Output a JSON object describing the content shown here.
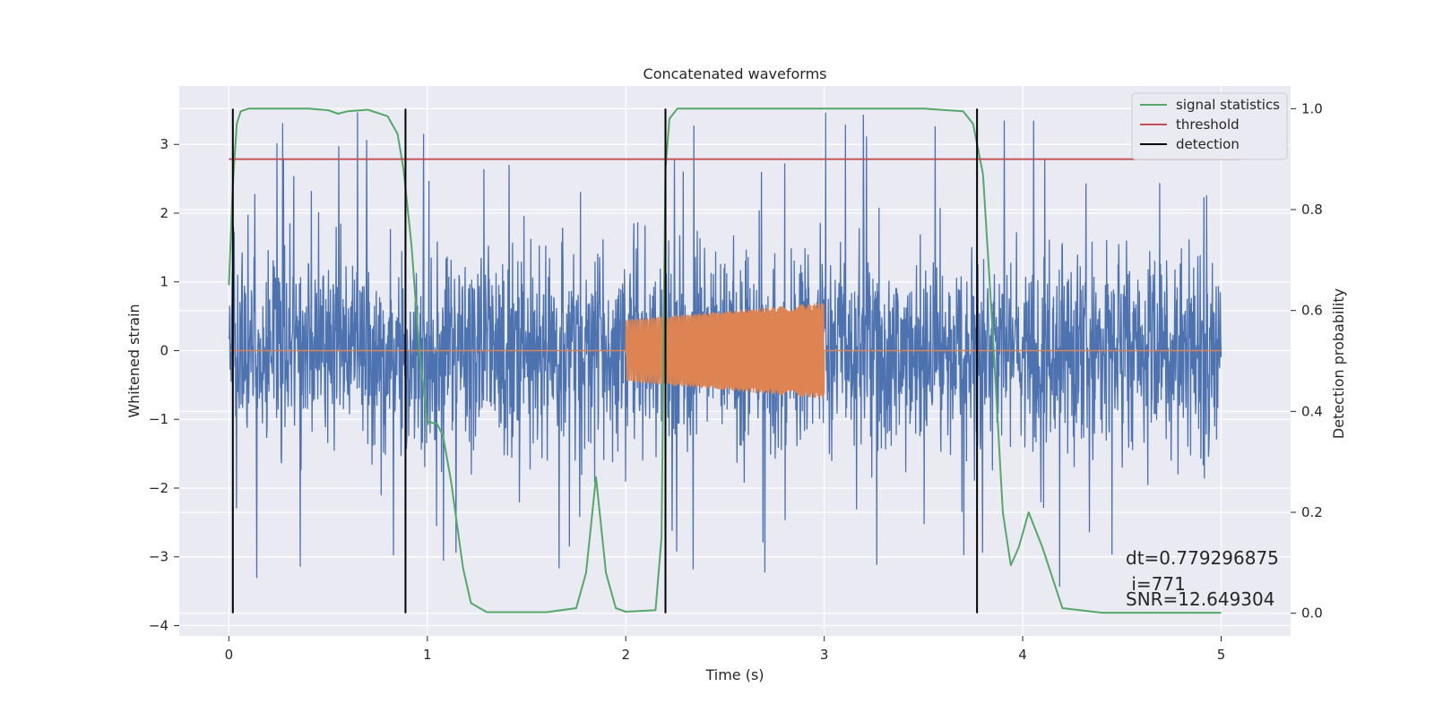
{
  "chart_data": {
    "type": "line",
    "title": "Concatenated waveforms",
    "xlabel": "Time (s)",
    "ylabel": "Whitened strain",
    "y2label": "Detection probability",
    "xlim": [
      -0.25,
      5.35
    ],
    "ylim": [
      -4.15,
      3.85
    ],
    "y2lim": [
      -0.045,
      1.045
    ],
    "x_ticks": [
      "0",
      "1",
      "2",
      "3",
      "4",
      "5"
    ],
    "y_ticks": [
      "3",
      "2",
      "1",
      "0",
      "−1",
      "−2",
      "−3",
      "−4"
    ],
    "y2_ticks": [
      "1.0",
      "0.8",
      "0.6",
      "0.4",
      "0.2",
      "0.0"
    ],
    "grid": true,
    "legend_placement": "top-right",
    "legend": [
      "signal statistics",
      "threshold",
      "detection"
    ],
    "colors": {
      "strain": "#4c72b0",
      "injection": "#dd8452",
      "signal_statistics": "#55a868",
      "threshold": "#c44e52",
      "detection": "#000000",
      "plot_bg": "#eaeaf2",
      "grid": "#ffffff"
    },
    "series": [
      {
        "name": "",
        "kind": "noise",
        "x_range": [
          0,
          5
        ],
        "typical_amplitude": 0.7,
        "peak_amplitude": 3.5
      },
      {
        "name": "",
        "kind": "chirp",
        "x_range": [
          2.0,
          3.0
        ],
        "amplitude_start": 0.45,
        "amplitude_end": 0.7,
        "baseline": 0
      },
      {
        "name": "signal statistics",
        "axis": "right",
        "x": [
          0,
          0.02,
          0.04,
          0.06,
          0.1,
          0.2,
          0.4,
          0.5,
          0.55,
          0.6,
          0.7,
          0.8,
          0.85,
          0.88,
          0.92,
          0.96,
          1.0,
          1.05,
          1.08,
          1.12,
          1.18,
          1.22,
          1.3,
          1.6,
          1.75,
          1.8,
          1.85,
          1.9,
          1.95,
          2.0,
          2.15,
          2.18,
          2.2,
          2.22,
          2.26,
          2.3,
          2.5,
          3.0,
          3.5,
          3.7,
          3.75,
          3.8,
          3.85,
          3.9,
          3.94,
          3.98,
          4.03,
          4.1,
          4.2,
          4.4,
          5.0
        ],
        "y": [
          0.65,
          0.85,
          0.97,
          0.995,
          1.0,
          1.0,
          1.0,
          0.997,
          0.99,
          0.995,
          0.998,
          0.985,
          0.95,
          0.88,
          0.73,
          0.52,
          0.38,
          0.375,
          0.35,
          0.26,
          0.09,
          0.02,
          0.002,
          0.002,
          0.01,
          0.08,
          0.27,
          0.08,
          0.01,
          0.003,
          0.006,
          0.15,
          0.88,
          0.98,
          1.0,
          1.0,
          1.0,
          1.0,
          1.0,
          0.995,
          0.97,
          0.87,
          0.55,
          0.2,
          0.095,
          0.13,
          0.2,
          0.13,
          0.01,
          0.001,
          0.001
        ]
      },
      {
        "name": "threshold",
        "axis": "right",
        "x": [
          0,
          5.1
        ],
        "y": [
          0.9,
          0.9
        ]
      },
      {
        "name": "detection",
        "axis": "right",
        "kind": "vlines",
        "x": [
          0.02,
          0.89,
          2.2,
          3.77
        ],
        "ymin": 0.0,
        "ymax": 1.0
      }
    ],
    "annotations": [
      {
        "text": "dt=0.779296875",
        "x": 4.5,
        "y": -3.0
      },
      {
        "text": " i=771",
        "x": 4.5,
        "y": -3.35
      },
      {
        "text": "SNR=12.649304",
        "x": 4.5,
        "y": -3.65
      }
    ]
  }
}
